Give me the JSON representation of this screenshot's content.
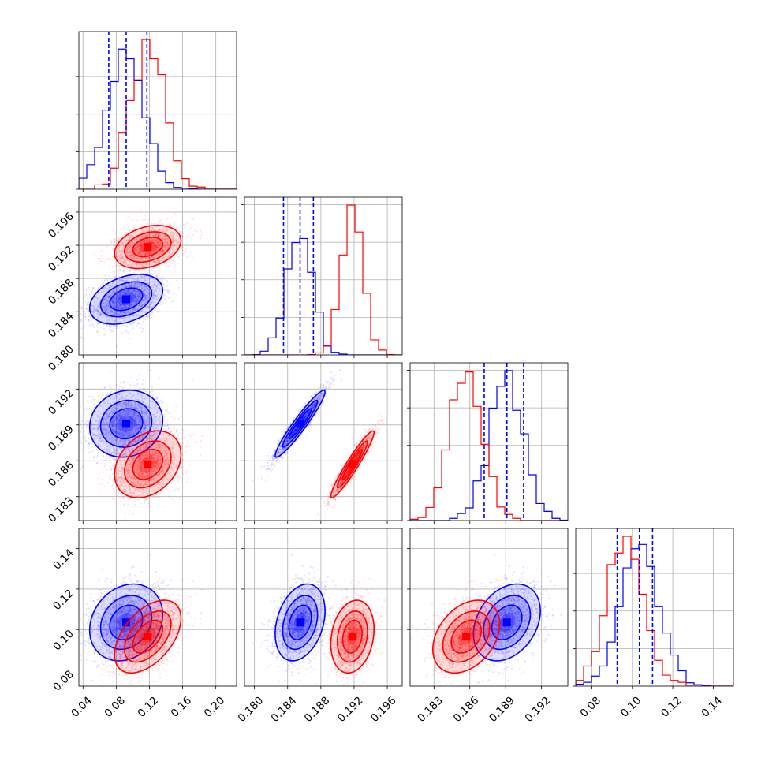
{
  "chart_data": {
    "type": "corner",
    "layout": "lower-triangle 4x4",
    "parameters": 4,
    "series": [
      {
        "color": "#0000ff",
        "means": [
          0.092,
          0.1855,
          0.1891,
          0.1035
        ],
        "stds": [
          0.022,
          0.0015,
          0.0014,
          0.0095
        ],
        "quantiles": [
          [
            0.071,
            0.092,
            0.117
          ],
          [
            0.1835,
            0.1855,
            0.1871
          ],
          [
            0.1872,
            0.1891,
            0.1905
          ],
          [
            0.0925,
            0.1035,
            0.11
          ]
        ],
        "corr": [
          [
            1,
            0.35,
            0.1,
            0.2
          ],
          [
            0.35,
            1,
            0.95,
            0.3
          ],
          [
            0.1,
            0.95,
            1,
            0.3
          ],
          [
            0.2,
            0.3,
            0.3,
            1
          ]
        ]
      },
      {
        "color": "#ff0000",
        "means": [
          0.118,
          0.1918,
          0.1857,
          0.0965
        ],
        "stds": [
          0.02,
          0.0013,
          0.0014,
          0.009
        ],
        "corr": [
          [
            1,
            0.3,
            0.3,
            0.5
          ],
          [
            0.3,
            1,
            0.95,
            0.2
          ],
          [
            0.3,
            0.95,
            1,
            0.35
          ],
          [
            0.5,
            0.2,
            0.35,
            1
          ]
        ]
      }
    ],
    "axes": [
      {
        "range": [
          0.035,
          0.225
        ],
        "ticks": [
          0.04,
          0.08,
          0.12,
          0.16,
          0.2
        ],
        "tick_labels": [
          "0.04",
          "0.08",
          "0.12",
          "0.16",
          "0.20"
        ]
      },
      {
        "range": [
          0.1788,
          0.1978
        ],
        "ticks": [
          0.18,
          0.184,
          0.188,
          0.192,
          0.196
        ],
        "tick_labels": [
          "0.180",
          "0.184",
          "0.188",
          "0.192",
          "0.196"
        ]
      },
      {
        "range": [
          0.181,
          0.1942
        ],
        "ticks": [
          0.183,
          0.186,
          0.189,
          0.192
        ],
        "tick_labels": [
          "0.183",
          "0.186",
          "0.189",
          "0.192"
        ]
      },
      {
        "range": [
          0.072,
          0.15
        ],
        "ticks": [
          0.08,
          0.1,
          0.12,
          0.14
        ],
        "tick_labels": [
          "0.08",
          "0.10",
          "0.12",
          "0.14"
        ]
      }
    ],
    "grid": true,
    "quantile_line_color": "#0000ff",
    "legend": "none"
  }
}
